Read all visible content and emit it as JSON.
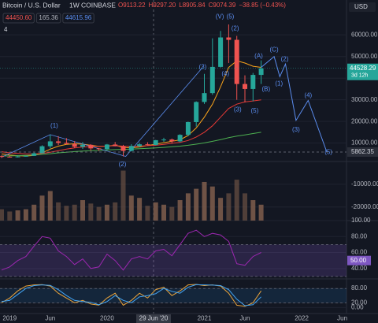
{
  "chart_data": [
    {
      "type": "candlestick",
      "title": "Bitcoin / U.S. Dollar",
      "interval": "1W",
      "exchange": "COINBASE",
      "ohlc_text": [
        "O9113.22",
        "H9297.20",
        "L8905.84",
        "C9074.39",
        "−38.85 (−0.43%)"
      ],
      "indicator_badges": [
        "44450.60",
        "165.36",
        "44615.96"
      ],
      "indicator_count": "4",
      "currency": "USD",
      "countdown": "3d 12h",
      "crosshair_date": "29 Jun '20",
      "categories": [
        null,
        "2019",
        null,
        null,
        null,
        null,
        "Jun",
        null,
        null,
        null,
        null,
        null,
        null,
        "2020",
        null,
        null,
        null,
        null,
        null,
        null,
        null,
        null,
        null,
        null,
        null,
        "2021",
        null,
        null,
        null,
        null,
        "Jun",
        null,
        null,
        null,
        null,
        null,
        null,
        "2022",
        null,
        null,
        null,
        null,
        "Jun",
        null
      ],
      "open": [
        4000,
        3700,
        3450,
        3850,
        4100,
        5300,
        8550,
        10800,
        10100,
        9600,
        8300,
        9200,
        7550,
        7200,
        9350,
        8550,
        6400,
        8650,
        9450,
        9150,
        11350,
        11650,
        10780,
        13800,
        19700,
        28990,
        33100,
        45200,
        58800,
        57700,
        37300,
        35000,
        41500,
        null,
        null,
        null,
        null,
        null,
        null,
        null,
        null,
        null,
        null,
        null
      ],
      "high": [
        4300,
        4100,
        4200,
        4100,
        5600,
        9000,
        13900,
        13200,
        12300,
        10900,
        10500,
        9500,
        7750,
        9600,
        10500,
        9200,
        9500,
        10100,
        10400,
        11450,
        12480,
        12100,
        14100,
        19900,
        29300,
        42000,
        58400,
        61800,
        64800,
        59500,
        41300,
        42400,
        48200,
        null,
        null,
        null,
        null,
        null,
        null,
        null,
        null,
        null,
        null,
        null
      ],
      "low": [
        3150,
        3400,
        3400,
        3700,
        4050,
        5300,
        7500,
        9100,
        9400,
        7700,
        7300,
        6500,
        6400,
        6900,
        8500,
        3850,
        6150,
        8100,
        8900,
        8950,
        10600,
        9800,
        10400,
        13200,
        17600,
        28100,
        32300,
        44900,
        47000,
        30000,
        28800,
        29300,
        37300,
        null,
        null,
        null,
        null,
        null,
        null,
        null,
        null,
        null,
        null,
        null
      ],
      "close": [
        3700,
        3450,
        3850,
        4100,
        5300,
        8550,
        10800,
        10100,
        9600,
        8300,
        9200,
        7550,
        7200,
        9350,
        8550,
        6400,
        8650,
        9450,
        9150,
        11350,
        11650,
        10780,
        13800,
        19700,
        28990,
        33100,
        45200,
        58800,
        57700,
        37300,
        35000,
        41500,
        44528.29,
        null,
        null,
        null,
        null,
        null,
        null,
        null,
        null,
        null,
        null,
        null
      ],
      "up_color": "#26a69a",
      "down_color": "#ef5350",
      "overlays": [
        {
          "color": "#f7a21b",
          "values": [
            5000,
            4500,
            4200,
            4000,
            4300,
            5500,
            7200,
            8600,
            9400,
            9700,
            9500,
            9000,
            8500,
            8600,
            9000,
            8000,
            7800,
            8200,
            8900,
            9500,
            10200,
            10800,
            11500,
            13500,
            17000,
            22000,
            28000,
            36000,
            45000,
            48000,
            47000,
            45500,
            45000
          ]
        },
        {
          "color": "#e53935",
          "values": [
            6000,
            5500,
            5200,
            5000,
            5000,
            5200,
            5800,
            6500,
            7200,
            7800,
            8200,
            8400,
            8500,
            8600,
            8800,
            8600,
            8500,
            8600,
            8800,
            9000,
            9400,
            9900,
            10300,
            11200,
            12800,
            15000,
            18000,
            22000,
            26000,
            28000,
            29000,
            29500,
            30000
          ]
        },
        {
          "color": "#4caf50",
          "values": [
            4000,
            4100,
            4200,
            4300,
            4500,
            4800,
            5100,
            5500,
            5800,
            6100,
            6300,
            6500,
            6600,
            6800,
            7000,
            7100,
            7200,
            7400,
            7600,
            7800,
            8000,
            8300,
            8600,
            9000,
            9500,
            10100,
            10800,
            11600,
            12500,
            13200,
            13800,
            14400,
            15000
          ]
        }
      ],
      "wave_line": {
        "color": "#5b8def",
        "x": [
          0,
          6,
          15.3,
          24.8
        ],
        "values": [
          3500,
          13900,
          3850,
          45000
        ]
      },
      "projection": {
        "color": "#5b8def",
        "x": [
          32,
          33.6,
          34.3,
          35,
          36.3,
          37.8,
          40.1
        ],
        "values": [
          45000,
          50000,
          40700,
          46500,
          20500,
          29700,
          5862.35
        ]
      },
      "annotations": [
        {
          "text": "(1)",
          "x": 6.5,
          "y": 17900
        },
        {
          "text": "(2)",
          "x": 14.9,
          "y": 0
        },
        {
          "text": "(3)",
          "x": 24.8,
          "y": 45000
        },
        {
          "text": "(V)",
          "x": 26.9,
          "y": 68400
        },
        {
          "text": "(5)",
          "x": 28.2,
          "y": 68400
        },
        {
          "text": "(2)",
          "x": 28.8,
          "y": 62900
        },
        {
          "text": "(4)",
          "x": 27.6,
          "y": 42000
        },
        {
          "text": "(3)",
          "x": 29.1,
          "y": 25300
        },
        {
          "text": "(5)",
          "x": 31.2,
          "y": 24900
        },
        {
          "text": "(A)",
          "x": 31.7,
          "y": 50200
        },
        {
          "text": "(B)",
          "x": 32.6,
          "y": 34800
        },
        {
          "text": "(C)",
          "x": 33.6,
          "y": 53100
        },
        {
          "text": "(1)",
          "x": 34.2,
          "y": 37400
        },
        {
          "text": "(2)",
          "x": 34.9,
          "y": 48700
        },
        {
          "text": "(3)",
          "x": 36.3,
          "y": 16100
        },
        {
          "text": "(4)",
          "x": 37.8,
          "y": 31900
        },
        {
          "text": "(5)",
          "x": 40.3,
          "y": 5800
        }
      ],
      "ylim": [
        1500,
        71000
      ],
      "yticks": [
        {
          "value": 10000,
          "label": "10000.00"
        },
        {
          "value": 20000,
          "label": "20000.00"
        },
        {
          "value": 30000,
          "label": "30000.00"
        },
        {
          "value": 40000,
          "label": "40000.00"
        },
        {
          "value": 50000,
          "label": "50000.00"
        },
        {
          "value": 60000,
          "label": "60000.00"
        }
      ]
    },
    {
      "type": "bar",
      "color": "#7a5a4a",
      "values": [
        -21000,
        -22000,
        -21500,
        -21000,
        -19000,
        -15000,
        -13000,
        -18000,
        -19500,
        -19000,
        -17000,
        -18500,
        -20000,
        -19000,
        -18000,
        -4000,
        -15000,
        -16000,
        -19500,
        -18000,
        -19000,
        -20000,
        -17000,
        -14000,
        -12000,
        -9000,
        -11000,
        -16000,
        -14000,
        -8000,
        -14000,
        -17000,
        -19000
      ],
      "ylim": [
        -26000,
        0
      ],
      "yticks": [
        {
          "value": -20000,
          "label": "-20000.00"
        },
        {
          "value": -10000,
          "label": "-10000.00"
        }
      ]
    },
    {
      "type": "line",
      "color": "#9c27b0",
      "values": [
        38,
        42,
        50,
        55,
        68,
        80,
        78,
        62,
        55,
        45,
        52,
        40,
        42,
        58,
        50,
        38,
        52,
        55,
        52,
        62,
        64,
        56,
        70,
        84,
        88,
        80,
        84,
        82,
        74,
        46,
        44,
        55,
        60
      ],
      "band": [
        30,
        70
      ],
      "current_badge": {
        "value": 50,
        "label": "50.00"
      },
      "ylim": [
        27,
        100
      ],
      "yticks": [
        {
          "value": 40,
          "label": "40.00"
        },
        {
          "value": 60,
          "label": "60.00"
        },
        {
          "value": 80,
          "label": "80.00"
        },
        {
          "value": 100,
          "label": "100.00"
        }
      ]
    },
    {
      "type": "line",
      "series": [
        {
          "color": "#e8a33c",
          "values": [
            20,
            40,
            70,
            90,
            95,
            96,
            90,
            60,
            40,
            20,
            30,
            15,
            10,
            40,
            60,
            10,
            30,
            60,
            40,
            75,
            85,
            50,
            70,
            95,
            97,
            92,
            95,
            90,
            60,
            10,
            5,
            20,
            70
          ]
        },
        {
          "color": "#42a5f5",
          "values": [
            25,
            30,
            55,
            80,
            92,
            95,
            93,
            75,
            50,
            30,
            25,
            22,
            12,
            25,
            50,
            30,
            20,
            45,
            50,
            58,
            80,
            68,
            60,
            85,
            96,
            95,
            94,
            92,
            75,
            35,
            8,
            12,
            45
          ]
        }
      ],
      "band": [
        20,
        80
      ],
      "ylim": [
        -25,
        120
      ],
      "yticks": [
        {
          "value": 0,
          "label": "0.00"
        },
        {
          "value": 20,
          "label": "20.00"
        },
        {
          "value": 80,
          "label": "80.00"
        }
      ]
    }
  ]
}
